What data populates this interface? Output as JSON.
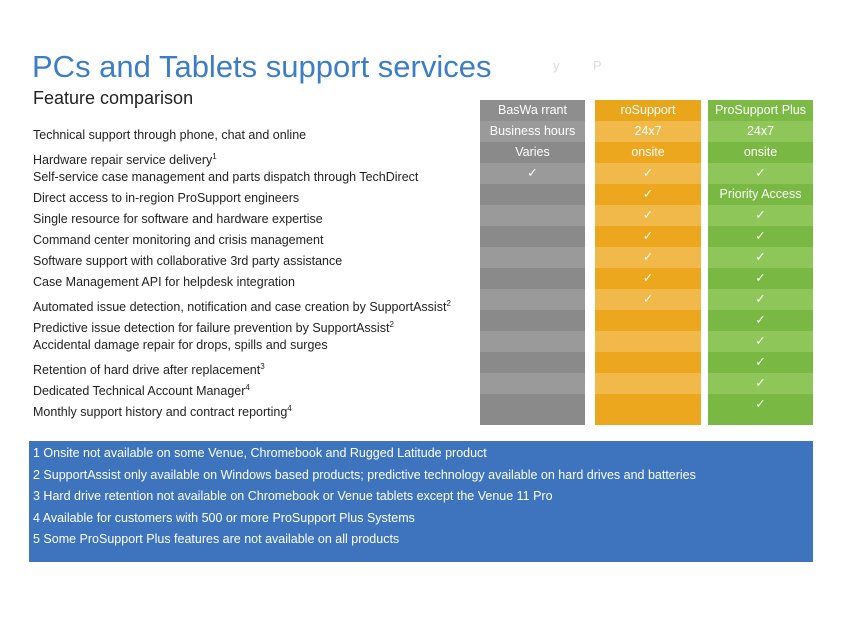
{
  "title": "PCs and Tablets support services",
  "subtitle": "Feature comparison",
  "ghost_text": [
    "y",
    "P"
  ],
  "features": [
    {
      "label": "Technical support through phone, chat and online",
      "sup": ""
    },
    {
      "label": "Hardware repair service delivery",
      "sup": "1"
    },
    {
      "label": "Self-service case management and parts dispatch through TechDirect",
      "sup": ""
    },
    {
      "label": "Direct access to in-region ProSupport engineers",
      "sup": ""
    },
    {
      "label": "Single resource for software and hardware expertise",
      "sup": ""
    },
    {
      "label": "Command center monitoring and crisis management",
      "sup": ""
    },
    {
      "label": "Software support with collaborative 3rd party assistance",
      "sup": ""
    },
    {
      "label": "Case Management API for helpdesk integration",
      "sup": ""
    },
    {
      "label": "Automated issue detection, notification and case creation by SupportAssist",
      "sup": "2"
    },
    {
      "label": "Predictive issue detection for failure prevention by SupportAssist",
      "sup": "2"
    },
    {
      "label": "Accidental damage repair for drops, spills and surges",
      "sup": ""
    },
    {
      "label": "Retention of hard drive after replacement",
      "sup": "3"
    },
    {
      "label": "Dedicated Technical Account Manager",
      "sup": "4"
    },
    {
      "label": "Monthly support history and contract reporting",
      "sup": "4"
    }
  ],
  "columns": [
    {
      "key": "basic",
      "header": "BasWa   rrant",
      "cells": [
        "Business hours",
        "Varies",
        "✓",
        "",
        "",
        "",
        "",
        "",
        "",
        "",
        "",
        "",
        "",
        ""
      ]
    },
    {
      "key": "prosupport",
      "header": "roSupport",
      "cells": [
        "24x7",
        "onsite",
        "✓",
        "✓",
        "✓",
        "✓",
        "✓",
        "✓",
        "✓",
        "",
        "",
        "",
        "",
        ""
      ]
    },
    {
      "key": "prosupport-plus",
      "header": "ProSupport Plus",
      "cells": [
        "24x7",
        "onsite",
        "✓",
        "Priority Access",
        "✓",
        "✓",
        "✓",
        "✓",
        "✓",
        "✓",
        "✓",
        "✓",
        "✓",
        "✓"
      ]
    }
  ],
  "footnotes": [
    "1 Onsite not available on some Venue, Chromebook and Rugged Latitude product",
    "2 SupportAssist only available on Windows based products; predictive technology available on hard drives and batteries",
    "3 Hard drive retention not available on Chromebook or Venue tablets except the Venue 11 Pro",
    "4 Available for customers with 500 or more ProSupport Plus Systems",
    "5 Some ProSupport Plus features are not available on all products"
  ],
  "colors": {
    "title": "#3d7dc8",
    "basic": "#8a8a8a",
    "prosupport": "#eca71e",
    "prosupport_plus": "#79b842",
    "footnote_bg": "#3d74bd"
  }
}
